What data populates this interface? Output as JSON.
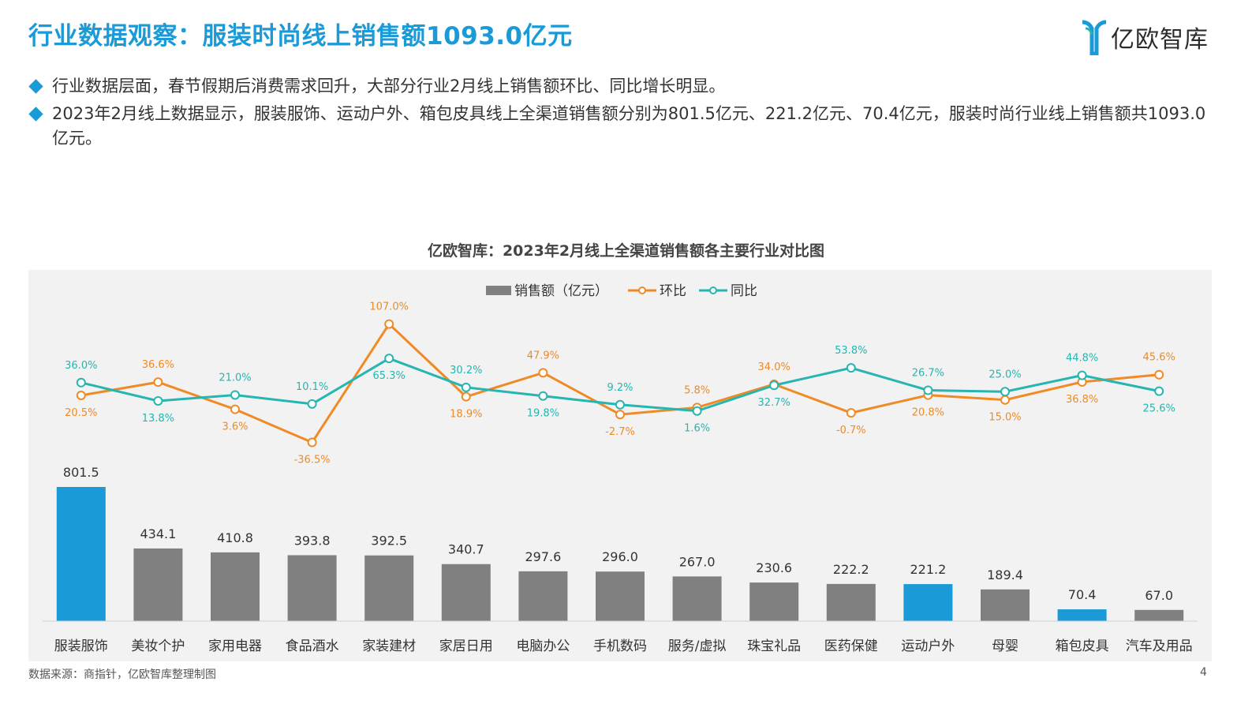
{
  "header": {
    "title": "行业数据观察：服装时尚线上销售额1093.0亿元",
    "logo_text": "亿欧智库"
  },
  "bullets": [
    "行业数据层面，春节假期后消费需求回升，大部分行业2月线上销售额环比、同比增长明显。",
    "2023年2月线上数据显示，服装服饰、运动户外、箱包皮具线上全渠道销售额分别为801.5亿元、221.2亿元、70.4亿元，服装时尚行业线上销售额共1093.0亿元。"
  ],
  "chart_data": {
    "type": "bar",
    "title": "亿欧智库：2023年2月线上全渠道销售额各主要行业对比图",
    "categories": [
      "服装服饰",
      "美妆个护",
      "家用电器",
      "食品酒水",
      "家装建材",
      "家居日用",
      "电脑办公",
      "手机数码",
      "服务/虚拟",
      "珠宝礼品",
      "医药保健",
      "运动户外",
      "母婴",
      "箱包皮具",
      "汽车及用品"
    ],
    "series": [
      {
        "name": "销售额（亿元）",
        "kind": "bar",
        "axis": "left",
        "values": [
          801.5,
          434.1,
          410.8,
          393.8,
          392.5,
          340.7,
          297.6,
          296.0,
          267.0,
          230.6,
          222.2,
          221.2,
          189.4,
          70.4,
          67.0
        ],
        "labels": [
          "801.5",
          "434.1",
          "410.8",
          "393.8",
          "392.5",
          "340.7",
          "297.6",
          "296.0",
          "267.0",
          "230.6",
          "222.2",
          "221.2",
          "189.4",
          "70.4",
          "67.0"
        ]
      },
      {
        "name": "环比",
        "kind": "line",
        "axis": "right",
        "values": [
          20.5,
          36.6,
          3.6,
          -36.5,
          107.0,
          18.9,
          47.9,
          -2.7,
          5.8,
          34.0,
          -0.7,
          20.8,
          15.0,
          36.8,
          45.6
        ],
        "labels": [
          "20.5%",
          "36.6%",
          "3.6%",
          "-36.5%",
          "107.0%",
          "18.9%",
          "47.9%",
          "-2.7%",
          "5.8%",
          "34.0%",
          "-0.7%",
          "20.8%",
          "15.0%",
          "36.8%",
          "45.6%"
        ]
      },
      {
        "name": "同比",
        "kind": "line",
        "axis": "right",
        "values": [
          36.0,
          13.8,
          21.0,
          10.1,
          65.3,
          30.2,
          19.8,
          9.2,
          1.6,
          32.7,
          53.8,
          26.7,
          25.0,
          44.8,
          25.6
        ],
        "labels": [
          "36.0%",
          "13.8%",
          "21.0%",
          "10.1%",
          "65.3%",
          "30.2%",
          "19.8%",
          "9.2%",
          "1.6%",
          "32.7%",
          "53.8%",
          "26.7%",
          "25.0%",
          "44.8%",
          "25.6%"
        ]
      }
    ],
    "highlight_categories": [
      "服装服饰",
      "运动户外",
      "箱包皮具"
    ],
    "legend_position": "top-center",
    "grid": false,
    "colors": {
      "bar": "#808080",
      "bar_highlight": "#1a9ad6",
      "mom_line": "#f08a24",
      "yoy_line": "#26b5b0",
      "background": "#f2f2f2"
    }
  },
  "footer": {
    "source": "数据来源：商指针，亿欧智库整理制图",
    "page_number": "4"
  }
}
